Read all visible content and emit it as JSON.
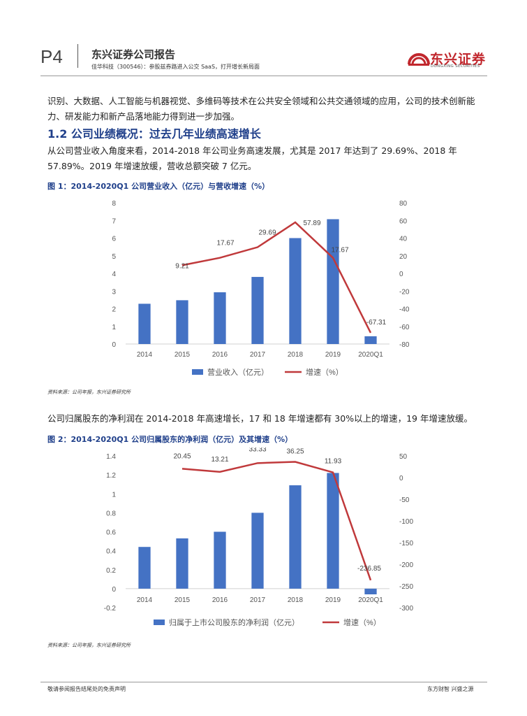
{
  "header": {
    "page_number": "P4",
    "report_title": "东兴证券公司报告",
    "report_subtitle": "佳华科技（300546）：参股兹券路进入公交 SaaS，打开增长新局面",
    "logo_cn": "东兴证券",
    "logo_en": "DONGXING SECURITIES"
  },
  "body": {
    "para1": "识别、大数据、人工智能与机器视觉、多维码等技术在公共安全领域和公共交通领域的应用，公司的技术创新能力、研发能力和新产品落地能力得到进一步加强。",
    "section_title": "1.2 公司业绩概况：过去几年业绩高速增长",
    "para2": "从公司营业收入角度来看，2014-2018 年公司业务高速发展，尤其是 2017 年达到了 29.69%、2018 年 57.89%。2019 年增速放缓，营收总额突破 7 亿元。",
    "fig1_title": "图 1：2014-2020Q1 公司营业收入（亿元）与营收增速（%）",
    "source1": "资料来源：公司年报，东兴证券研究所",
    "para3": "公司归属股东的净利润在 2014-2018 年高速增长，17 和 18 年增速都有 30%以上的增速，19 年增速放缓。",
    "fig2_title": "图 2：2014-2020Q1 公司归属股东的净利润（亿元）及其增速（%）",
    "source2": "资料来源：公司年报，东兴证券研究所"
  },
  "footer": {
    "left": "敬请参阅报告结尾处的免责声明",
    "right": "东方财智 兴盛之源"
  },
  "colors": {
    "bar": "#4472c4",
    "line": "#c0393b",
    "title_blue": "#1f3f8a"
  },
  "chart_data": [
    {
      "type": "bar",
      "categories": [
        "2014",
        "2015",
        "2016",
        "2017",
        "2018",
        "2019",
        "2020Q1"
      ],
      "series": [
        {
          "name": "营业收入（亿元）",
          "type": "bar",
          "axis": "left",
          "values": [
            2.28,
            2.48,
            2.93,
            3.8,
            6.0,
            7.07,
            0.44
          ]
        },
        {
          "name": "增速（%）",
          "type": "line",
          "axis": "right",
          "values": [
            null,
            9.21,
            17.67,
            29.69,
            57.89,
            17.67,
            -67.31
          ],
          "labels": [
            "",
            "9.21",
            "17.67",
            "29.69",
            "57.89",
            "17.67",
            "-67.31"
          ]
        }
      ],
      "ylim_left": [
        0,
        8
      ],
      "yticks_left": [
        "0",
        "1",
        "2",
        "3",
        "4",
        "5",
        "6",
        "7",
        "8"
      ],
      "ylim_right": [
        -80,
        80
      ],
      "yticks_right": [
        "-80",
        "-60",
        "-40",
        "-20",
        "0",
        "20",
        "40",
        "60",
        "80"
      ],
      "legend": [
        "营业收入（亿元）",
        "增速（%）"
      ],
      "legend_position": "bottom",
      "grid": false
    },
    {
      "type": "bar",
      "categories": [
        "2014",
        "2015",
        "2016",
        "2017",
        "2018",
        "2019",
        "2020Q1"
      ],
      "series": [
        {
          "name": "归属于上市公司股东的净利润（亿元）",
          "type": "bar",
          "axis": "left",
          "values": [
            0.44,
            0.53,
            0.6,
            0.8,
            1.09,
            1.22,
            -0.06
          ]
        },
        {
          "name": "增速（%）",
          "type": "line",
          "axis": "right",
          "values": [
            null,
            20.45,
            13.21,
            33.33,
            36.25,
            11.93,
            -236.85
          ],
          "labels": [
            "",
            "20.45",
            "13.21",
            "33.33",
            "36.25",
            "11.93",
            "-236.85"
          ]
        }
      ],
      "ylim_left": [
        -0.2,
        1.4
      ],
      "yticks_left": [
        "-0.2",
        "0",
        "0.2",
        "0.4",
        "0.6",
        "0.8",
        "1",
        "1.2",
        "1.4"
      ],
      "ylim_right": [
        -300,
        50
      ],
      "yticks_right": [
        "-300",
        "-250",
        "-200",
        "-150",
        "-100",
        "-50",
        "0",
        "50"
      ],
      "legend": [
        "归属于上市公司股东的净利润（亿元）",
        "增速（%）"
      ],
      "legend_position": "bottom",
      "grid": false
    }
  ]
}
